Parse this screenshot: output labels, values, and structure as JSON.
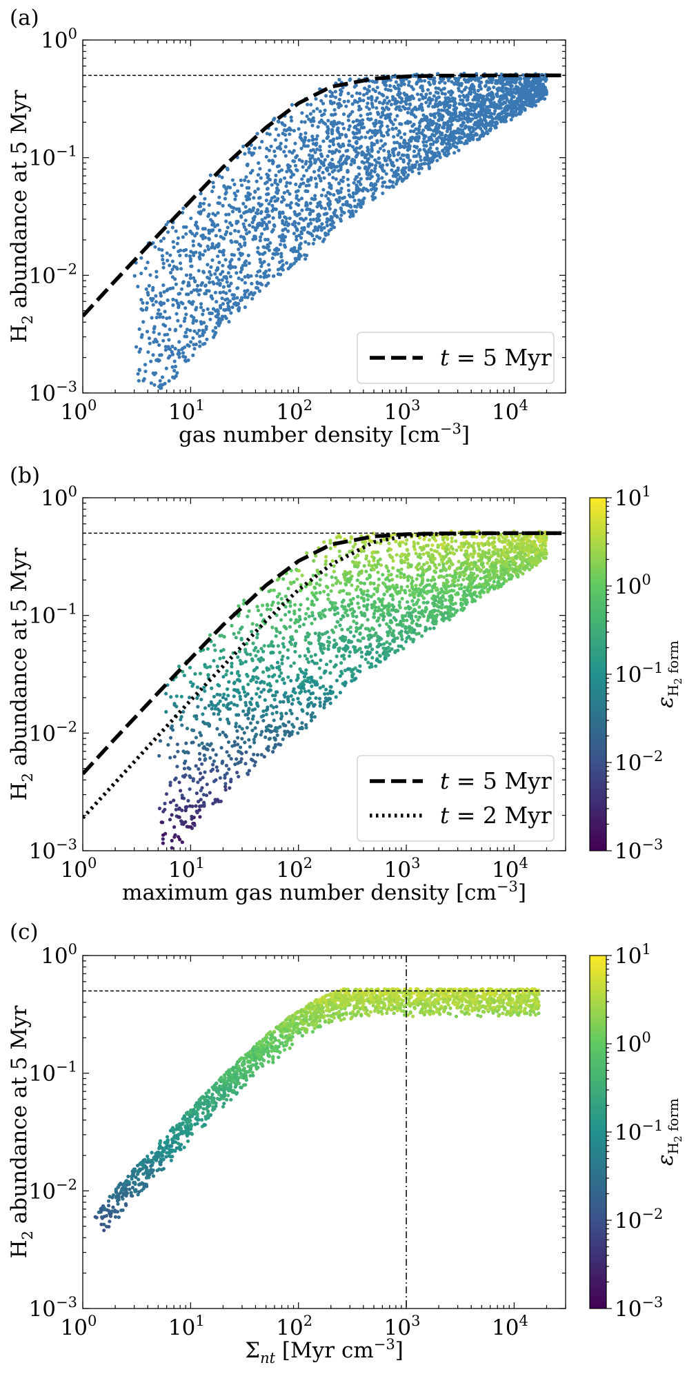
{
  "figure": {
    "colormap_stops": [
      "#440154",
      "#3b528b",
      "#21918c",
      "#5ec962",
      "#fde725"
    ],
    "point_color_panel_a": "#3a78b4",
    "line_color": "#000000"
  },
  "chart_data": [
    {
      "type": "scatter",
      "panel_label": "(a)",
      "xlabel_main": "gas number density [cm",
      "xlabel_sup": "−3",
      "xlabel_end": "]",
      "ylabel_main": "H",
      "ylabel_sub": "2",
      "ylabel_rest": " abundance at 5 Myr",
      "xscale": "log",
      "yscale": "log",
      "xlim": [
        1,
        30000
      ],
      "ylim": [
        0.001,
        1
      ],
      "x_ticks": [
        {
          "base": "10",
          "exp": "0"
        },
        {
          "base": "10",
          "exp": "1"
        },
        {
          "base": "10",
          "exp": "2"
        },
        {
          "base": "10",
          "exp": "3"
        },
        {
          "base": "10",
          "exp": "4"
        }
      ],
      "y_ticks": [
        {
          "base": "10",
          "exp": "−3"
        },
        {
          "base": "10",
          "exp": "−2"
        },
        {
          "base": "10",
          "exp": "−1"
        },
        {
          "base": "10",
          "exp": "0"
        }
      ],
      "hline": 0.5,
      "vline": null,
      "curves": [
        {
          "name": "t = 5 Myr",
          "style": "dashed",
          "x": [
            1,
            2,
            5,
            10,
            20,
            50,
            100,
            200,
            500,
            1000,
            2000,
            5000,
            10000,
            30000
          ],
          "y": [
            0.0045,
            0.009,
            0.022,
            0.043,
            0.083,
            0.18,
            0.29,
            0.4,
            0.47,
            0.49,
            0.497,
            0.499,
            0.5,
            0.5
          ]
        }
      ],
      "legend": {
        "location": "lower right",
        "entries": [
          {
            "style": "dashed",
            "label_var": "t",
            "label_rest": " = 5 Myr"
          }
        ]
      },
      "scatter": {
        "color_mode": "uniform",
        "n_points": 3200,
        "x_range": [
          3,
          20000
        ],
        "offset_dex_range": [
          -1.4,
          0.05
        ],
        "description": "simulation tracer particles"
      },
      "colorbar": null
    },
    {
      "type": "scatter",
      "panel_label": "(b)",
      "xlabel_main": "maximum gas number density [cm",
      "xlabel_sup": "−3",
      "xlabel_end": "]",
      "ylabel_main": "H",
      "ylabel_sub": "2",
      "ylabel_rest": " abundance at 5 Myr",
      "xscale": "log",
      "yscale": "log",
      "xlim": [
        1,
        30000
      ],
      "ylim": [
        0.001,
        1
      ],
      "x_ticks": [
        {
          "base": "10",
          "exp": "0"
        },
        {
          "base": "10",
          "exp": "1"
        },
        {
          "base": "10",
          "exp": "2"
        },
        {
          "base": "10",
          "exp": "3"
        },
        {
          "base": "10",
          "exp": "4"
        }
      ],
      "y_ticks": [
        {
          "base": "10",
          "exp": "−3"
        },
        {
          "base": "10",
          "exp": "−2"
        },
        {
          "base": "10",
          "exp": "−1"
        },
        {
          "base": "10",
          "exp": "0"
        }
      ],
      "hline": 0.5,
      "vline": null,
      "curves": [
        {
          "name": "t = 5 Myr",
          "style": "dashed",
          "x": [
            1,
            2,
            5,
            10,
            20,
            50,
            100,
            200,
            500,
            1000,
            2000,
            5000,
            10000,
            30000
          ],
          "y": [
            0.0045,
            0.009,
            0.022,
            0.043,
            0.083,
            0.18,
            0.29,
            0.4,
            0.47,
            0.49,
            0.497,
            0.499,
            0.5,
            0.5
          ]
        },
        {
          "name": "t = 2 Myr",
          "style": "dotted",
          "x": [
            1,
            2,
            5,
            10,
            20,
            50,
            100,
            200,
            500,
            1000,
            2000,
            5000,
            10000,
            30000
          ],
          "y": [
            0.0019,
            0.0038,
            0.0095,
            0.019,
            0.037,
            0.09,
            0.165,
            0.27,
            0.42,
            0.475,
            0.493,
            0.499,
            0.5,
            0.5
          ]
        }
      ],
      "legend": {
        "location": "lower right",
        "entries": [
          {
            "style": "dashed",
            "label_var": "t",
            "label_rest": " = 5 Myr"
          },
          {
            "style": "dotted",
            "label_var": "t",
            "label_rest": " = 2 Myr"
          }
        ]
      },
      "scatter": {
        "color_mode": "colormap",
        "n_points": 2600,
        "x_range": [
          5,
          20000
        ],
        "offset_dex_range": [
          -1.5,
          0.05
        ],
        "description": "tracer particles colored by H2 formation efficiency"
      },
      "colorbar": {
        "label_main": "ε",
        "label_sub": "H",
        "label_subsub": "2",
        "label_rest": " form",
        "range": [
          0.001,
          10
        ],
        "ticks": [
          {
            "base": "10",
            "exp": "−3"
          },
          {
            "base": "10",
            "exp": "−2"
          },
          {
            "base": "10",
            "exp": "−1"
          },
          {
            "base": "10",
            "exp": "0"
          },
          {
            "base": "10",
            "exp": "1"
          }
        ]
      }
    },
    {
      "type": "scatter",
      "panel_label": "(c)",
      "xlabel_main": "Σ",
      "xlabel_subvar": "nt",
      "xlabel_rest": " [Myr cm",
      "xlabel_sup": "−3",
      "xlabel_end": "]",
      "ylabel_main": "H",
      "ylabel_sub": "2",
      "ylabel_rest": " abundance at 5 Myr",
      "xscale": "log",
      "yscale": "log",
      "xlim": [
        1,
        30000
      ],
      "ylim": [
        0.001,
        1
      ],
      "x_ticks": [
        {
          "base": "10",
          "exp": "0"
        },
        {
          "base": "10",
          "exp": "1"
        },
        {
          "base": "10",
          "exp": "2"
        },
        {
          "base": "10",
          "exp": "3"
        },
        {
          "base": "10",
          "exp": "4"
        }
      ],
      "y_ticks": [
        {
          "base": "10",
          "exp": "−3"
        },
        {
          "base": "10",
          "exp": "−2"
        },
        {
          "base": "10",
          "exp": "−1"
        },
        {
          "base": "10",
          "exp": "0"
        }
      ],
      "hline": 0.5,
      "vline": 1000,
      "curves": [],
      "legend": null,
      "scatter": {
        "color_mode": "colormap",
        "n_points": 2400,
        "x_range": [
          1.3,
          17000
        ],
        "offset_dex_range": [
          -0.22,
          0.06
        ],
        "description": "tracer particles tightly following relation"
      },
      "colorbar": {
        "label_main": "ε",
        "label_sub": "H",
        "label_subsub": "2",
        "label_rest": " form",
        "range": [
          0.001,
          10
        ],
        "ticks": [
          {
            "base": "10",
            "exp": "−3"
          },
          {
            "base": "10",
            "exp": "−2"
          },
          {
            "base": "10",
            "exp": "−1"
          },
          {
            "base": "10",
            "exp": "0"
          },
          {
            "base": "10",
            "exp": "1"
          }
        ]
      }
    }
  ]
}
